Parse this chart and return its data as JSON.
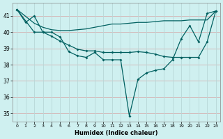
{
  "xlabel": "Humidex (Indice chaleur)",
  "bg_color": "#cff0f0",
  "line_color": "#006060",
  "grid_color_h": "#d4b0b0",
  "grid_color_v": "#b8d8d8",
  "xlim": [
    -0.5,
    23.5
  ],
  "ylim": [
    34.5,
    41.8
  ],
  "xticks": [
    0,
    1,
    2,
    3,
    4,
    5,
    6,
    7,
    8,
    9,
    10,
    11,
    12,
    13,
    14,
    15,
    16,
    17,
    18,
    19,
    20,
    21,
    22,
    23
  ],
  "yticks": [
    35,
    36,
    37,
    38,
    39,
    40,
    41
  ],
  "series1_x": [
    0,
    1,
    2,
    3,
    4,
    5,
    6,
    7,
    8,
    9,
    10,
    11,
    12,
    13,
    14,
    15,
    16,
    17,
    18,
    19,
    20,
    21,
    22,
    23
  ],
  "series1_y": [
    41.4,
    40.6,
    41.0,
    40.0,
    40.0,
    39.7,
    38.8,
    38.55,
    38.45,
    38.75,
    38.3,
    38.3,
    38.3,
    34.85,
    37.1,
    37.5,
    37.65,
    37.75,
    38.3,
    39.6,
    40.4,
    39.4,
    41.15,
    41.3
  ],
  "series2_x": [
    0,
    2,
    3,
    4,
    5,
    6,
    7,
    8,
    9,
    10,
    11,
    12,
    13,
    14,
    15,
    16,
    17,
    18,
    19,
    20,
    21,
    22,
    23
  ],
  "series2_y": [
    41.4,
    40.55,
    40.3,
    40.15,
    40.1,
    40.1,
    40.15,
    40.2,
    40.3,
    40.4,
    40.5,
    40.5,
    40.55,
    40.6,
    40.6,
    40.65,
    40.7,
    40.7,
    40.7,
    40.75,
    40.75,
    40.75,
    41.3
  ],
  "series3_x": [
    0,
    2,
    3,
    4,
    5,
    6,
    7,
    8,
    9,
    10,
    11,
    12,
    13,
    14,
    15,
    16,
    17,
    18,
    19,
    20,
    21,
    22,
    23
  ],
  "series3_y": [
    41.4,
    40.0,
    40.0,
    39.75,
    39.45,
    39.2,
    38.95,
    38.85,
    38.85,
    38.75,
    38.75,
    38.75,
    38.75,
    38.8,
    38.75,
    38.65,
    38.5,
    38.45,
    38.45,
    38.45,
    38.45,
    39.4,
    41.3
  ]
}
